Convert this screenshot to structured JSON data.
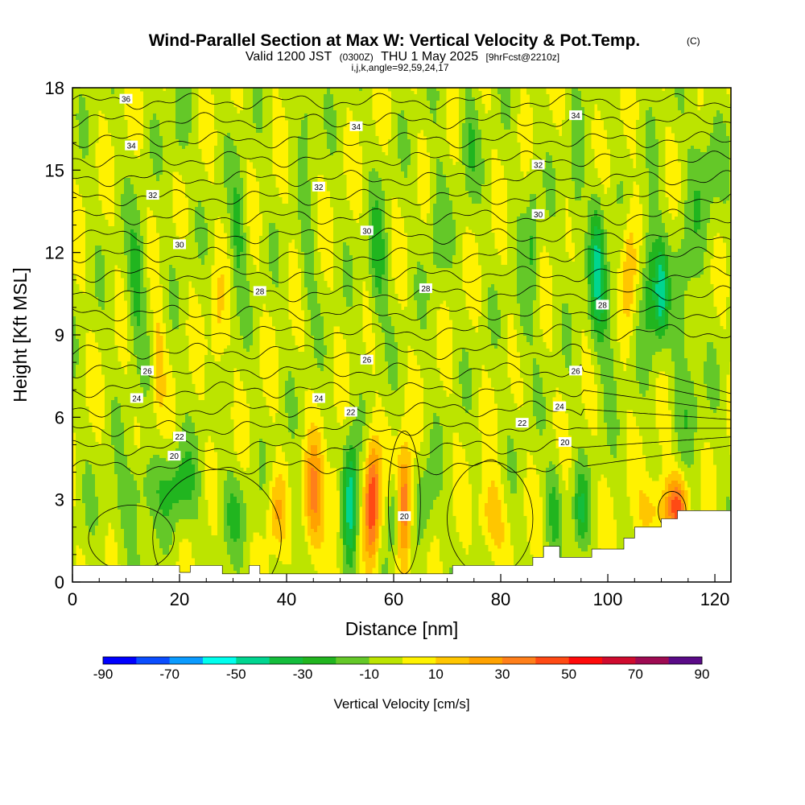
{
  "title": {
    "main": "Wind-Parallel Section at Max W: Vertical Velocity & Pot.Temp.",
    "main_tag": "(C)",
    "valid_prefix": "Valid 1200 JST",
    "valid_utc": "(0300Z)",
    "valid_date": "THU 1 May 2025",
    "forecast": "[9hrFcst@2210z]",
    "indices": "i,j,k,angle=92,59,24,17"
  },
  "chart_data": {
    "type": "heatmap",
    "xlabel": "Distance [nm]",
    "ylabel": "Height [Kft MSL]",
    "xlim": [
      0,
      123
    ],
    "ylim": [
      0,
      18
    ],
    "x_ticks": [
      "0",
      "20",
      "40",
      "60",
      "80",
      "100",
      "120"
    ],
    "y_ticks": [
      "0",
      "3",
      "6",
      "9",
      "12",
      "15",
      "18"
    ],
    "grid": false,
    "colorbar": {
      "label": "Vertical Velocity [cm/s]",
      "ticks": [
        "-90",
        "-70",
        "-50",
        "-30",
        "-10",
        "10",
        "30",
        "50",
        "70",
        "90"
      ],
      "levels": [
        -90,
        -80,
        -70,
        -60,
        -50,
        -40,
        -30,
        -20,
        -10,
        0,
        10,
        20,
        30,
        40,
        50,
        60,
        70,
        80,
        90
      ],
      "colors": [
        "#0000ff",
        "#0a4dff",
        "#0a9bff",
        "#00ffee",
        "#00d590",
        "#14bd3c",
        "#21b51f",
        "#64c828",
        "#bce400",
        "#fff200",
        "#ffc600",
        "#ffa200",
        "#ff7f1a",
        "#ff4a14",
        "#ff0a0a",
        "#cf0a2e",
        "#9e0a52",
        "#5a0a87"
      ],
      "placement": "bottom"
    },
    "contour_field": "Potential temperature (C)",
    "contour_labels": [
      {
        "x": 10,
        "y": 17.6,
        "label": "36"
      },
      {
        "x": 94,
        "y": 17.0,
        "label": "34"
      },
      {
        "x": 53,
        "y": 16.6,
        "label": "34"
      },
      {
        "x": 11,
        "y": 15.9,
        "label": "34"
      },
      {
        "x": 87,
        "y": 15.2,
        "label": "32"
      },
      {
        "x": 46,
        "y": 14.4,
        "label": "32"
      },
      {
        "x": 15,
        "y": 14.1,
        "label": "32"
      },
      {
        "x": 87,
        "y": 13.4,
        "label": "30"
      },
      {
        "x": 55,
        "y": 12.8,
        "label": "30"
      },
      {
        "x": 20,
        "y": 12.3,
        "label": "30"
      },
      {
        "x": 66,
        "y": 10.7,
        "label": "28"
      },
      {
        "x": 35,
        "y": 10.6,
        "label": "28"
      },
      {
        "x": 99,
        "y": 10.1,
        "label": "28"
      },
      {
        "x": 55,
        "y": 8.1,
        "label": "26"
      },
      {
        "x": 14,
        "y": 7.7,
        "label": "26"
      },
      {
        "x": 94,
        "y": 7.7,
        "label": "26"
      },
      {
        "x": 46,
        "y": 6.7,
        "label": "24"
      },
      {
        "x": 12,
        "y": 6.7,
        "label": "24"
      },
      {
        "x": 91,
        "y": 6.4,
        "label": "24"
      },
      {
        "x": 52,
        "y": 6.2,
        "label": "22"
      },
      {
        "x": 84,
        "y": 5.8,
        "label": "22"
      },
      {
        "x": 20,
        "y": 5.3,
        "label": "22"
      },
      {
        "x": 92,
        "y": 5.1,
        "label": "20"
      },
      {
        "x": 19,
        "y": 4.6,
        "label": "20"
      },
      {
        "x": 62,
        "y": 2.4,
        "label": "20"
      }
    ]
  }
}
